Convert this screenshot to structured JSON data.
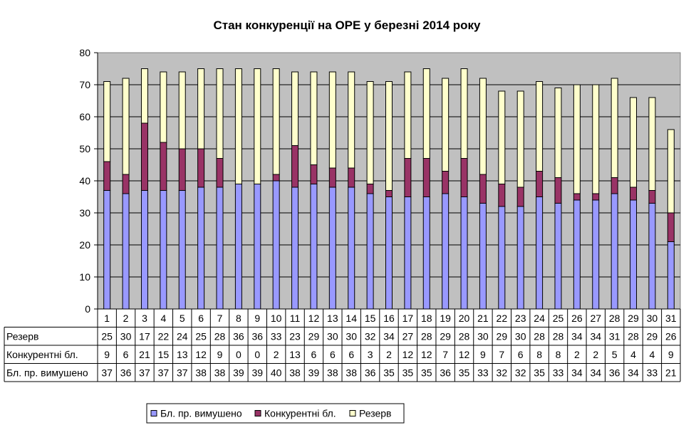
{
  "chart_data": {
    "type": "bar",
    "stacked": true,
    "title": "Стан конкуренції на ОРЕ  у березні 2014 року",
    "xlabel": "",
    "ylabel": "",
    "ylim": [
      0,
      80
    ],
    "yticks": [
      0,
      10,
      20,
      30,
      40,
      50,
      60,
      70,
      80
    ],
    "grid": true,
    "legend_position": "bottom",
    "categories": [
      "1",
      "2",
      "3",
      "4",
      "5",
      "6",
      "7",
      "8",
      "9",
      "10",
      "11",
      "12",
      "13",
      "14",
      "15",
      "16",
      "17",
      "18",
      "19",
      "20",
      "21",
      "22",
      "23",
      "24",
      "25",
      "26",
      "27",
      "28",
      "29",
      "30",
      "31"
    ],
    "series": [
      {
        "name": "Бл. пр. вимушено",
        "color": "#9999ff",
        "values": [
          37,
          36,
          37,
          37,
          37,
          38,
          38,
          39,
          39,
          40,
          38,
          39,
          38,
          38,
          36,
          35,
          35,
          35,
          36,
          35,
          33,
          32,
          32,
          35,
          33,
          34,
          34,
          36,
          34,
          33,
          21
        ]
      },
      {
        "name": "Конкурентні бл.",
        "color": "#993366",
        "values": [
          9,
          6,
          21,
          15,
          13,
          12,
          9,
          0,
          0,
          2,
          13,
          6,
          6,
          6,
          3,
          2,
          12,
          12,
          7,
          12,
          9,
          7,
          6,
          8,
          8,
          2,
          2,
          5,
          4,
          4,
          9
        ]
      },
      {
        "name": "Резерв",
        "color": "#ffffcc",
        "values": [
          25,
          30,
          17,
          22,
          24,
          25,
          28,
          36,
          36,
          33,
          23,
          29,
          30,
          30,
          32,
          34,
          27,
          28,
          29,
          28,
          30,
          29,
          30,
          28,
          28,
          34,
          34,
          31,
          28,
          29,
          26
        ]
      }
    ],
    "table_rows_order": [
      2,
      1,
      0
    ],
    "legend_order": [
      0,
      1,
      2
    ],
    "plot_background": "#c0c0c0"
  }
}
